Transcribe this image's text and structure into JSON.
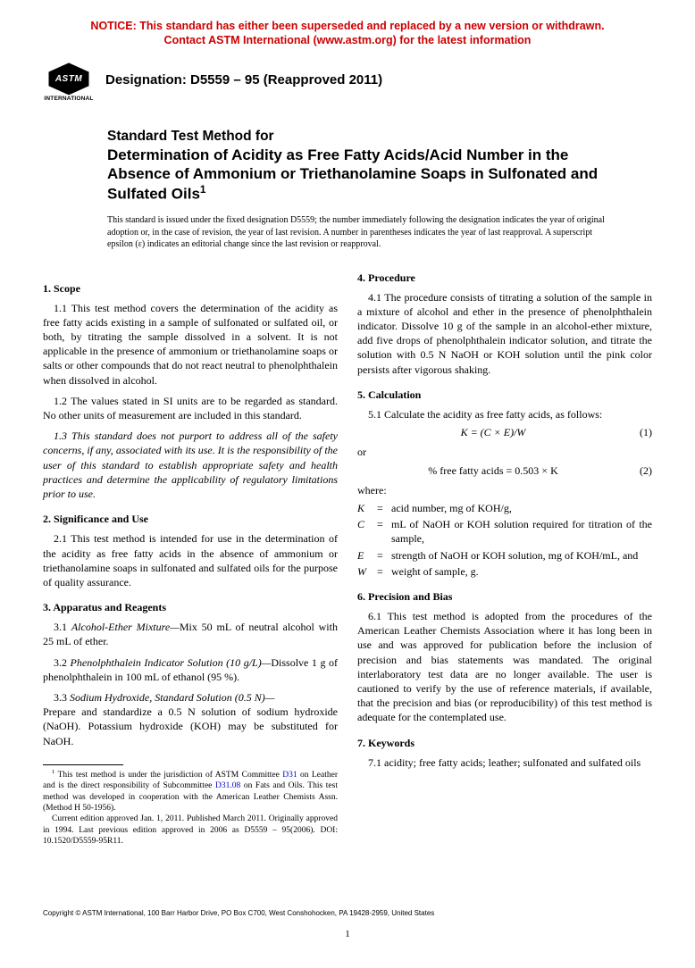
{
  "notice": {
    "line1": "NOTICE: This standard has either been superseded and replaced by a new version or withdrawn.",
    "line2": "Contact ASTM International (www.astm.org) for the latest information",
    "color": "#cc0000"
  },
  "logo": {
    "text": "ASTM",
    "subtext": "INTERNATIONAL"
  },
  "designation": "Designation: D5559 – 95 (Reapproved 2011)",
  "title": {
    "lead": "Standard Test Method for",
    "main": "Determination of Acidity as Free Fatty Acids/Acid Number in the Absence of Ammonium or Triethanolamine Soaps in Sulfonated and Sulfated Oils",
    "sup": "1"
  },
  "issuance": "This standard is issued under the fixed designation D5559; the number immediately following the designation indicates the year of original adoption or, in the case of revision, the year of last revision. A number in parentheses indicates the year of last reapproval. A superscript epsilon (ε) indicates an editorial change since the last revision or reapproval.",
  "left": {
    "s1": {
      "head": "1. Scope",
      "p1": "1.1 This test method covers the determination of the acidity as free fatty acids existing in a sample of sulfonated or sulfated oil, or both, by titrating the sample dissolved in a solvent. It is not applicable in the presence of ammonium or triethanolamine soaps or salts or other compounds that do not react neutral to phenolphthalein when dissolved in alcohol.",
      "p2": "1.2 The values stated in SI units are to be regarded as standard. No other units of measurement are included in this standard.",
      "p3": "1.3 This standard does not purport to address all of the safety concerns, if any, associated with its use. It is the responsibility of the user of this standard to establish appropriate safety and health practices and determine the applicability of regulatory limitations prior to use."
    },
    "s2": {
      "head": "2. Significance and Use",
      "p1": "2.1 This test method is intended for use in the determination of the acidity as free fatty acids in the absence of ammonium or triethanolamine soaps in sulfonated and sulfated oils for the purpose of quality assurance."
    },
    "s3": {
      "head": "3. Apparatus and Reagents",
      "p1a": "3.1 ",
      "p1b": "Alcohol-Ether Mixture—",
      "p1c": "Mix 50 mL of neutral alcohol with 25 mL of ether.",
      "p2a": "3.2 ",
      "p2b": "Phenolphthalein Indicator Solution (10 g/L)—",
      "p2c": "Dissolve 1 g of phenolphthalein in 100 mL of ethanol (95 %).",
      "p3a": "3.3 ",
      "p3b": "Sodium Hydroxide, Standard Solution (0.5 N)—",
      "p3c": "Prepare and standardize a 0.5 N solution of sodium hydroxide (NaOH). Potassium hydroxide (KOH) may be substituted for NaOH."
    },
    "footnote": {
      "sup": "1",
      "t1": " This test method is under the jurisdiction of ASTM Committee ",
      "l1": "D31",
      "t2": " on Leather and is the direct responsibility of Subcommittee ",
      "l2": "D31.08",
      "t3": " on Fats and Oils. This test method was developed in cooperation with the American Leather Chemists Assn. (Method H 50-1956).",
      "p2": "Current edition approved Jan. 1, 2011. Published March 2011. Originally approved in 1994. Last previous edition approved in 2006 as D5559 – 95(2006). DOI: 10.1520/D5559-95R11."
    }
  },
  "right": {
    "s4": {
      "head": "4. Procedure",
      "p1": "4.1 The procedure consists of titrating a solution of the sample in a mixture of alcohol and ether in the presence of phenolphthalein indicator. Dissolve 10 g of the sample in an alcohol-ether mixture, add five drops of phenolphthalein indicator solution, and titrate the solution with 0.5 N NaOH or KOH solution until the pink color persists after vigorous shaking."
    },
    "s5": {
      "head": "5. Calculation",
      "p1": "5.1 Calculate the acidity as free fatty acids, as follows:",
      "eq1": "K = (C × E)/W",
      "eq1n": "(1)",
      "or": "or",
      "eq2": "% free fatty acids = 0.503 × K",
      "eq2n": "(2)",
      "where": "where:",
      "defs": [
        {
          "sym": "K",
          "def": "acid number, mg of KOH/g,"
        },
        {
          "sym": "C",
          "def": "mL of NaOH or KOH solution required for titration of the sample,"
        },
        {
          "sym": "E",
          "def": "strength of NaOH or KOH solution, mg of KOH/mL, and"
        },
        {
          "sym": "W",
          "def": "weight of sample, g."
        }
      ]
    },
    "s6": {
      "head": "6. Precision and Bias",
      "p1": "6.1 This test method is adopted from the procedures of the American Leather Chemists Association where it has long been in use and was approved for publication before the inclusion of precision and bias statements was mandated. The original interlaboratory test data are no longer available. The user is cautioned to verify by the use of reference materials, if available, that the precision and bias (or reproducibility) of this test method is adequate for the contemplated use."
    },
    "s7": {
      "head": "7. Keywords",
      "p1": "7.1 acidity; free fatty acids; leather; sulfonated and sulfated oils"
    }
  },
  "copyright": "Copyright © ASTM International, 100 Barr Harbor Drive, PO Box C700, West Conshohocken, PA 19428-2959, United States",
  "pagenum": "1"
}
